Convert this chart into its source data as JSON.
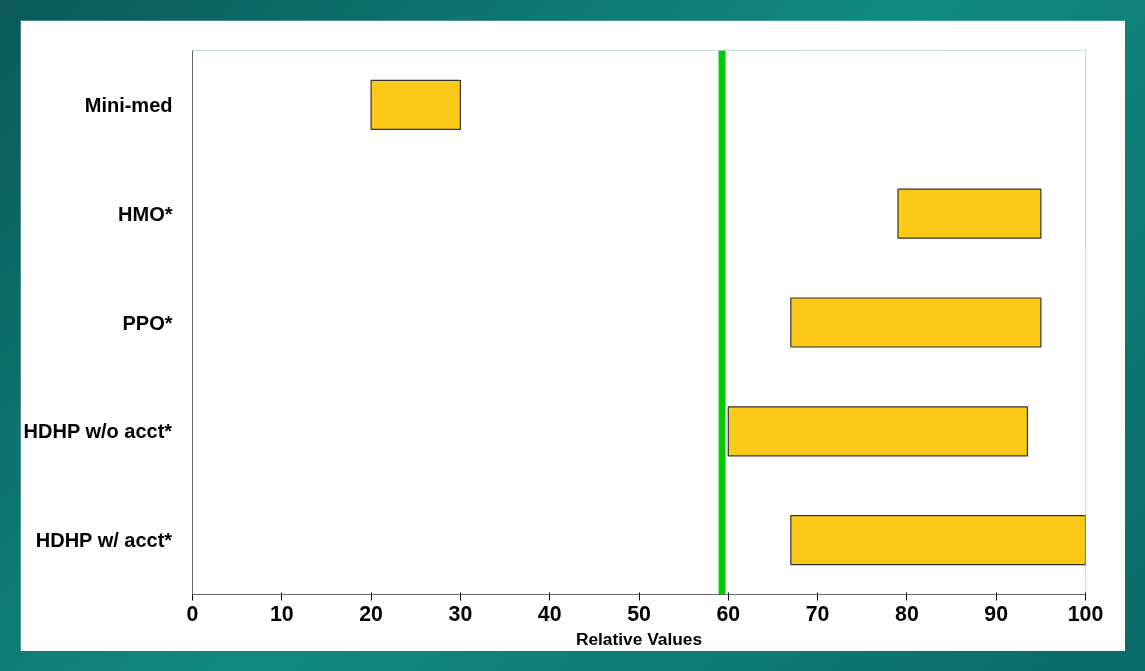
{
  "chart_data": {
    "type": "bar",
    "orientation": "horizontal",
    "xlabel": "Relative Values",
    "categories": [
      "Mini-med",
      "HMO*",
      "PPO*",
      "HDHP w/o acct*",
      "HDHP w/ acct*"
    ],
    "base": [
      20,
      79,
      67,
      60,
      67
    ],
    "values": [
      10,
      16,
      28,
      33.5,
      33
    ],
    "color": "#fdc918",
    "xlim": [
      0,
      100
    ],
    "xticks": [
      0,
      10,
      20,
      30,
      40,
      50,
      60,
      70,
      80,
      90,
      100
    ],
    "ref_lines": [
      {
        "axis": "x",
        "value": 59.3,
        "color": "#00cc00"
      }
    ],
    "grid": false
  }
}
